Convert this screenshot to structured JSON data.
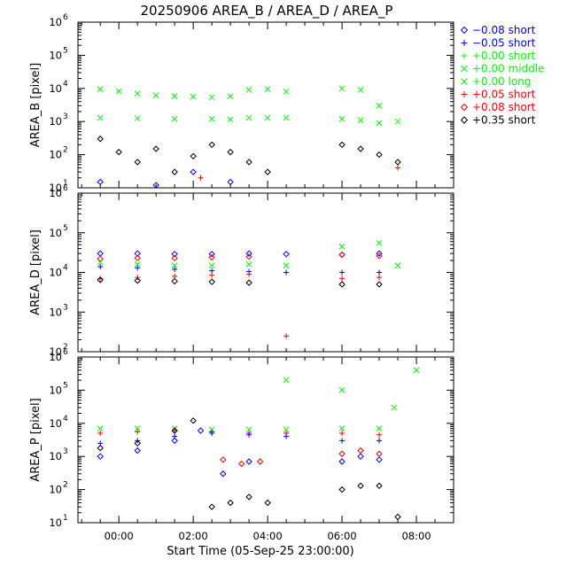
{
  "chart_data": {
    "type": "scatter",
    "title": "20250906 AREA_B / AREA_D / AREA_P",
    "xlabel": "Start Time (05-Sep-25 23:00:00)",
    "x_tick_labels": [
      "00:00",
      "02:00",
      "04:00",
      "06:00",
      "08:00"
    ],
    "x_tick_hours": [
      0,
      2,
      4,
      6,
      8
    ],
    "xlim_hours": [
      -1.1,
      9.0
    ],
    "y_scale": "log",
    "legend_position": "right-top",
    "legend": [
      {
        "marker": "diamond",
        "label": "−0.08 short",
        "color": "#0000ff"
      },
      {
        "marker": "plus",
        "label": "−0.05 short",
        "color": "#0000ff"
      },
      {
        "marker": "plus",
        "label": "+0.00 short",
        "color": "#00ff00"
      },
      {
        "marker": "cross",
        "label": "+0.00 middle",
        "color": "#00ff00"
      },
      {
        "marker": "cross",
        "label": "+0.00 long",
        "color": "#00ff00"
      },
      {
        "marker": "plus",
        "label": "+0.05 short",
        "color": "#ff0000"
      },
      {
        "marker": "diamond",
        "label": "+0.08 short",
        "color": "#ff0000"
      },
      {
        "marker": "diamond",
        "label": "+0.35 short",
        "color": "#000000"
      }
    ],
    "panels": [
      {
        "ylabel": "AREA_B [pixel]",
        "ylim_exp": [
          1,
          6
        ],
        "y_tick_labels": [
          "10",
          "10",
          "10",
          "10",
          "10",
          "10"
        ],
        "y_tick_exps": [
          "1",
          "2",
          "3",
          "4",
          "5",
          "6"
        ],
        "series": [
          {
            "marker": "cross",
            "color": "#00ff00",
            "points": [
              [
                -0.5,
                9500
              ],
              [
                0.0,
                8200
              ],
              [
                0.5,
                7000
              ],
              [
                1.0,
                6200
              ],
              [
                1.5,
                5800
              ],
              [
                2.0,
                5600
              ],
              [
                2.5,
                5400
              ],
              [
                3.0,
                5800
              ],
              [
                3.5,
                9000
              ],
              [
                4.0,
                9500
              ],
              [
                4.5,
                8000
              ],
              [
                6.0,
                10000
              ],
              [
                6.5,
                9000
              ],
              [
                7.0,
                3000
              ],
              [
                7.5,
                1000
              ]
            ]
          },
          {
            "marker": "cross",
            "color": "#00ff00",
            "points": [
              [
                -0.5,
                1300
              ],
              [
                0.5,
                1250
              ],
              [
                1.5,
                1200
              ],
              [
                2.5,
                1200
              ],
              [
                3.0,
                1150
              ],
              [
                3.5,
                1300
              ],
              [
                4.0,
                1300
              ],
              [
                4.5,
                1300
              ],
              [
                6.0,
                1200
              ],
              [
                6.5,
                1100
              ],
              [
                7.0,
                900
              ]
            ]
          },
          {
            "marker": "diamond",
            "color": "#000000",
            "points": [
              [
                -0.5,
                300
              ],
              [
                0.0,
                120
              ],
              [
                0.5,
                60
              ],
              [
                1.0,
                150
              ],
              [
                1.5,
                30
              ],
              [
                2.0,
                90
              ],
              [
                2.5,
                200
              ],
              [
                3.0,
                120
              ],
              [
                3.5,
                60
              ],
              [
                4.0,
                30
              ],
              [
                6.0,
                200
              ],
              [
                6.5,
                150
              ],
              [
                7.0,
                100
              ],
              [
                7.5,
                60
              ]
            ]
          },
          {
            "marker": "diamond",
            "color": "#0000ff",
            "points": [
              [
                -0.5,
                15
              ],
              [
                1.0,
                12
              ],
              [
                2.0,
                30
              ],
              [
                3.0,
                15
              ]
            ]
          },
          {
            "marker": "plus",
            "color": "#ff0000",
            "points": [
              [
                2.2,
                20
              ],
              [
                7.5,
                40
              ]
            ]
          }
        ]
      },
      {
        "ylabel": "AREA_D [pixel]",
        "ylim_exp": [
          2,
          6
        ],
        "y_tick_labels": [
          "10",
          "10",
          "10",
          "10",
          "10"
        ],
        "y_tick_exps": [
          "2",
          "3",
          "4",
          "5",
          "6"
        ],
        "series": [
          {
            "marker": "diamond",
            "color": "#0000ff",
            "points": [
              [
                -0.5,
                30000
              ],
              [
                0.5,
                30000
              ],
              [
                1.5,
                29000
              ],
              [
                2.5,
                29000
              ],
              [
                3.5,
                30000
              ],
              [
                4.5,
                29000
              ],
              [
                6.0,
                28000
              ],
              [
                7.0,
                30000
              ]
            ]
          },
          {
            "marker": "diamond",
            "color": "#ff0000",
            "points": [
              [
                -0.5,
                22000
              ],
              [
                0.5,
                23000
              ],
              [
                1.5,
                23000
              ],
              [
                2.5,
                24000
              ],
              [
                3.5,
                25000
              ],
              [
                6.0,
                28000
              ],
              [
                7.0,
                26000
              ]
            ]
          },
          {
            "marker": "cross",
            "color": "#00ff00",
            "points": [
              [
                -0.5,
                18000
              ],
              [
                0.5,
                16000
              ],
              [
                1.5,
                15000
              ],
              [
                2.5,
                15000
              ],
              [
                3.5,
                16000
              ],
              [
                4.5,
                15000
              ],
              [
                6.0,
                45000
              ],
              [
                7.0,
                55000
              ],
              [
                7.5,
                15000
              ]
            ]
          },
          {
            "marker": "plus",
            "color": "#0000ff",
            "points": [
              [
                -0.5,
                14000
              ],
              [
                0.5,
                13000
              ],
              [
                1.5,
                12000
              ],
              [
                2.5,
                11000
              ],
              [
                3.5,
                10500
              ],
              [
                4.5,
                10000
              ],
              [
                6.0,
                10000
              ],
              [
                7.0,
                10000
              ]
            ]
          },
          {
            "marker": "plus",
            "color": "#ff0000",
            "points": [
              [
                -0.5,
                7000
              ],
              [
                0.5,
                7500
              ],
              [
                1.5,
                8000
              ],
              [
                2.5,
                8500
              ],
              [
                3.5,
                9000
              ],
              [
                6.0,
                7000
              ],
              [
                7.0,
                7500
              ],
              [
                4.5,
                250
              ]
            ]
          },
          {
            "marker": "diamond",
            "color": "#000000",
            "points": [
              [
                -0.5,
                6500
              ],
              [
                0.5,
                6200
              ],
              [
                1.5,
                6000
              ],
              [
                2.5,
                5800
              ],
              [
                3.5,
                5500
              ],
              [
                6.0,
                5000
              ],
              [
                7.0,
                5000
              ]
            ]
          }
        ]
      },
      {
        "ylabel": "AREA_P [pixel]",
        "ylim_exp": [
          1,
          6
        ],
        "y_tick_labels": [
          "10",
          "10",
          "10",
          "10",
          "10",
          "10"
        ],
        "y_tick_exps": [
          "1",
          "2",
          "3",
          "4",
          "5",
          "6"
        ],
        "series": [
          {
            "marker": "cross",
            "color": "#00ff00",
            "points": [
              [
                -0.5,
                7000
              ],
              [
                0.5,
                7000
              ],
              [
                1.5,
                7000
              ],
              [
                2.5,
                6500
              ],
              [
                3.5,
                6500
              ],
              [
                4.5,
                6500
              ],
              [
                6.0,
                7000
              ],
              [
                7.0,
                7000
              ],
              [
                7.4,
                30000
              ],
              [
                8.0,
                400000
              ],
              [
                4.5,
                200000
              ],
              [
                6.0,
                100000
              ]
            ]
          },
          {
            "marker": "plus",
            "color": "#ff0000",
            "points": [
              [
                -0.5,
                5000
              ],
              [
                0.5,
                5500
              ],
              [
                1.5,
                6000
              ],
              [
                2.5,
                5500
              ],
              [
                3.5,
                5000
              ],
              [
                4.5,
                5000
              ],
              [
                6.0,
                5000
              ],
              [
                7.0,
                4500
              ]
            ]
          },
          {
            "marker": "plus",
            "color": "#0000ff",
            "points": [
              [
                -0.5,
                2500
              ],
              [
                0.5,
                3000
              ],
              [
                1.5,
                4000
              ],
              [
                2.5,
                5000
              ],
              [
                3.5,
                4500
              ],
              [
                4.5,
                4000
              ],
              [
                6.0,
                3000
              ],
              [
                7.0,
                3000
              ]
            ]
          },
          {
            "marker": "diamond",
            "color": "#0000ff",
            "points": [
              [
                -0.5,
                1000
              ],
              [
                0.5,
                1500
              ],
              [
                1.5,
                3000
              ],
              [
                2.2,
                6000
              ],
              [
                2.8,
                300
              ],
              [
                3.5,
                700
              ],
              [
                6.0,
                700
              ],
              [
                6.5,
                1000
              ],
              [
                7.0,
                800
              ]
            ]
          },
          {
            "marker": "diamond",
            "color": "#000000",
            "points": [
              [
                -0.5,
                1800
              ],
              [
                0.5,
                2500
              ],
              [
                1.5,
                6000
              ],
              [
                2.0,
                12000
              ],
              [
                2.5,
                30
              ],
              [
                3.0,
                40
              ],
              [
                3.5,
                60
              ],
              [
                4.0,
                40
              ],
              [
                6.0,
                100
              ],
              [
                6.5,
                130
              ],
              [
                7.0,
                130
              ],
              [
                7.5,
                15
              ]
            ]
          },
          {
            "marker": "diamond",
            "color": "#ff0000",
            "points": [
              [
                2.8,
                800
              ],
              [
                3.3,
                600
              ],
              [
                3.8,
                700
              ],
              [
                6.0,
                1200
              ],
              [
                6.5,
                1500
              ],
              [
                7.0,
                1200
              ]
            ]
          }
        ]
      }
    ]
  }
}
